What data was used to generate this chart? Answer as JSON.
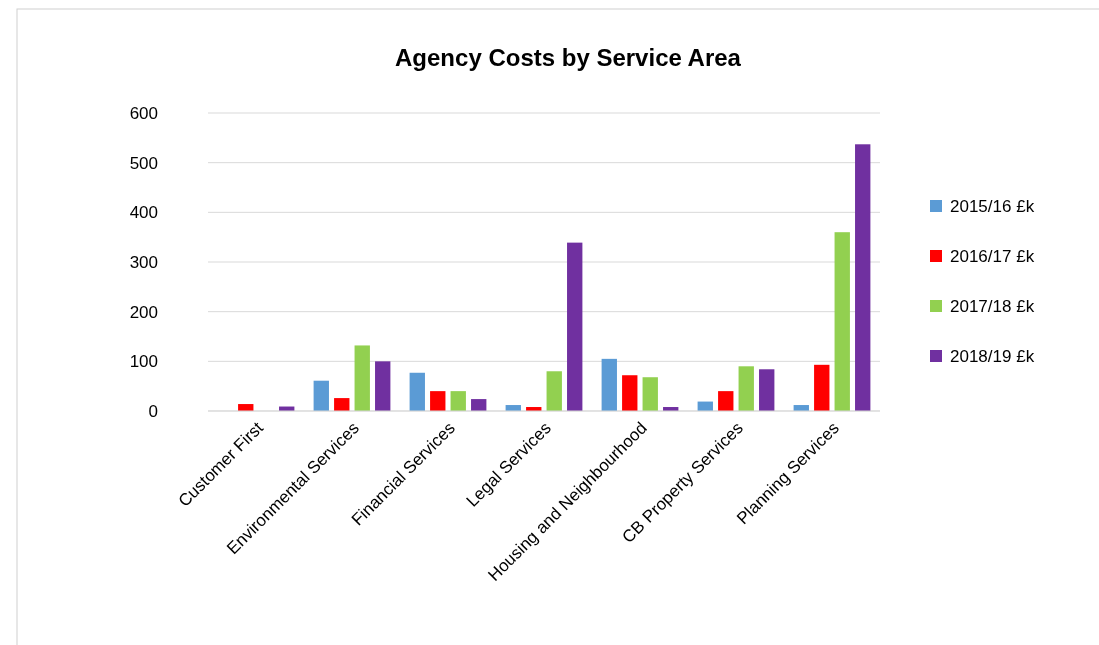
{
  "chart_data": {
    "type": "bar",
    "title": "Agency Costs by Service Area",
    "categories": [
      "Customer First",
      "Environmental Services",
      "Financial Services",
      "Legal Services",
      "Housing and Neighbourhood",
      "CB Property Services",
      "Planning Services"
    ],
    "series": [
      {
        "name": "2015/16 £k",
        "color": "#5b9bd5",
        "values": [
          null,
          61,
          77,
          12,
          105,
          19,
          12
        ]
      },
      {
        "name": "2016/17 £k",
        "color": "#ff0000",
        "values": [
          14,
          26,
          40,
          8,
          72,
          40,
          93
        ]
      },
      {
        "name": "2017/18 £k",
        "color": "#92d050",
        "values": [
          null,
          132,
          40,
          80,
          68,
          90,
          360
        ]
      },
      {
        "name": "2018/19 £k",
        "color": "#7030a0",
        "values": [
          9,
          100,
          24,
          339,
          8,
          84,
          537
        ]
      }
    ],
    "ylim": [
      0,
      600
    ],
    "yticks": [
      0,
      100,
      200,
      300,
      400,
      500,
      600
    ],
    "grid": "y",
    "legend": "right"
  }
}
